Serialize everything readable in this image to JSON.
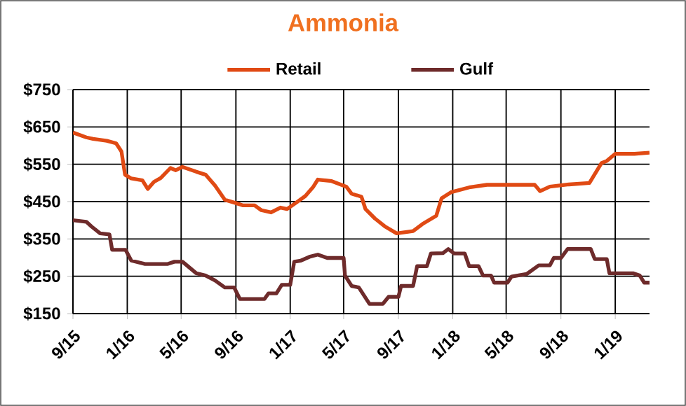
{
  "chart_data": {
    "type": "line",
    "title": "Ammonia",
    "x": [
      "2015-09-01",
      "2015-10-01",
      "2015-10-16",
      "2015-11-16",
      "2015-12-07",
      "2015-12-19",
      "2015-12-27",
      "2016-01-10",
      "2016-02-04",
      "2016-02-16",
      "2016-03-01",
      "2016-03-16",
      "2016-04-07",
      "2016-04-19",
      "2016-05-04",
      "2016-06-04",
      "2016-06-25",
      "2016-07-16",
      "2016-08-07",
      "2016-09-01",
      "2016-09-16",
      "2016-10-13",
      "2016-10-28",
      "2016-11-19",
      "2016-12-10",
      "2016-12-25",
      "2017-01-13",
      "2017-02-04",
      "2017-02-22",
      "2017-03-04",
      "2017-04-04",
      "2017-05-07",
      "2017-05-19",
      "2017-06-10",
      "2017-06-19",
      "2017-07-10",
      "2017-08-01",
      "2017-08-28",
      "2017-10-04",
      "2017-10-25",
      "2017-11-25",
      "2017-12-07",
      "2017-12-28",
      "2018-02-07",
      "2018-03-19",
      "2018-07-04",
      "2018-07-16",
      "2018-08-07",
      "2018-09-19",
      "2018-11-04",
      "2018-12-01",
      "2018-12-13",
      "2019-01-01",
      "2019-02-13",
      "2019-03-19"
    ],
    "series": [
      {
        "name": "Retail",
        "color": "#e04a14",
        "values": [
          635,
          622,
          618,
          613,
          606,
          584,
          522,
          512,
          507,
          484,
          503,
          513,
          540,
          534,
          543,
          530,
          522,
          493,
          455,
          446,
          440,
          440,
          427,
          421,
          434,
          430,
          446,
          465,
          490,
          509,
          505,
          490,
          471,
          463,
          430,
          405,
          384,
          365,
          371,
          390,
          412,
          459,
          475,
          488,
          495,
          495,
          478,
          490,
          496,
          500,
          553,
          559,
          578,
          578,
          581
        ]
      },
      {
        "name": "Gulf",
        "color": "#6e2b2b",
        "x": [
          "2015-09-01",
          "2015-10-01",
          "2015-10-13",
          "2015-11-01",
          "2015-11-22",
          "2015-11-28",
          "2015-12-28",
          "2016-01-10",
          "2016-02-10",
          "2016-04-01",
          "2016-04-16",
          "2016-05-04",
          "2016-06-04",
          "2016-06-25",
          "2016-07-16",
          "2016-08-07",
          "2016-08-28",
          "2016-09-10",
          "2016-11-04",
          "2016-11-13",
          "2016-12-01",
          "2016-12-13",
          "2017-01-01",
          "2017-01-10",
          "2017-01-25",
          "2017-02-13",
          "2017-03-04",
          "2017-03-25",
          "2017-05-01",
          "2017-05-04",
          "2017-05-19",
          "2017-06-04",
          "2017-06-28",
          "2017-07-28",
          "2017-08-10",
          "2017-09-01",
          "2017-09-07",
          "2017-10-04",
          "2017-10-13",
          "2017-11-04",
          "2017-11-13",
          "2017-12-10",
          "2017-12-22",
          "2018-01-04",
          "2018-01-28",
          "2018-02-07",
          "2018-02-28",
          "2018-03-10",
          "2018-03-28",
          "2018-04-04",
          "2018-05-04",
          "2018-05-13",
          "2018-06-16",
          "2018-07-13",
          "2018-08-07",
          "2018-08-16",
          "2018-09-01",
          "2018-09-16",
          "2018-11-07",
          "2018-11-16",
          "2018-12-13",
          "2018-12-19",
          "2019-02-10",
          "2019-02-25",
          "2019-03-07",
          "2019-03-19"
        ],
        "values": [
          400,
          396,
          383,
          365,
          362,
          321,
          321,
          292,
          283,
          283,
          289,
          289,
          258,
          252,
          239,
          220,
          220,
          189,
          189,
          204,
          204,
          227,
          227,
          289,
          292,
          302,
          308,
          299,
          299,
          252,
          224,
          220,
          176,
          176,
          195,
          195,
          224,
          224,
          277,
          277,
          311,
          312,
          323,
          311,
          311,
          277,
          277,
          252,
          252,
          233,
          233,
          249,
          256,
          279,
          279,
          299,
          299,
          323,
          323,
          296,
          296,
          258,
          258,
          252,
          233,
          233
        ]
      }
    ],
    "xlim": [
      "2015-09-01",
      "2019-03-19"
    ],
    "xticks": [
      {
        "value": "2015-09",
        "label": "9/15"
      },
      {
        "value": "2016-01",
        "label": "1/16"
      },
      {
        "value": "2016-05",
        "label": "5/16"
      },
      {
        "value": "2016-09",
        "label": "9/16"
      },
      {
        "value": "2017-01",
        "label": "1/17"
      },
      {
        "value": "2017-05",
        "label": "5/17"
      },
      {
        "value": "2017-09",
        "label": "9/17"
      },
      {
        "value": "2018-01",
        "label": "1/18"
      },
      {
        "value": "2018-05",
        "label": "5/18"
      },
      {
        "value": "2018-09",
        "label": "9/18"
      },
      {
        "value": "2019-01",
        "label": "1/19"
      }
    ],
    "ylim": [
      150,
      750
    ],
    "yticks": [
      {
        "value": 150,
        "label": "$150"
      },
      {
        "value": 250,
        "label": "$250"
      },
      {
        "value": 350,
        "label": "$350"
      },
      {
        "value": 450,
        "label": "$450"
      },
      {
        "value": 550,
        "label": "$550"
      },
      {
        "value": 650,
        "label": "$650"
      },
      {
        "value": 750,
        "label": "$750"
      }
    ],
    "grid": true,
    "legend": "top"
  }
}
